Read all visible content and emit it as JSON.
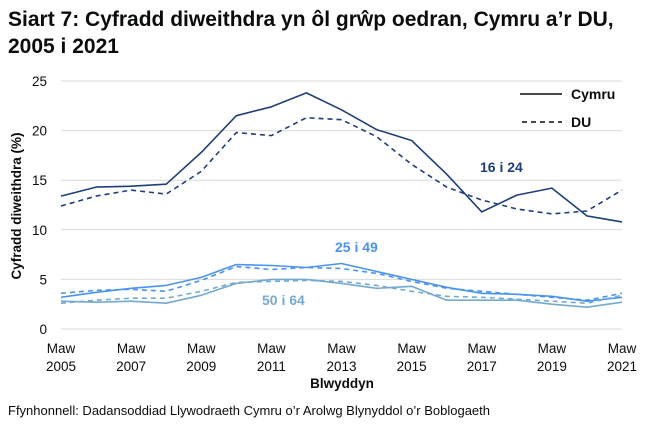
{
  "title": "Siart 7: Cyfradd diweithdra yn ôl grŵp oedran, Cymru a’r DU, 2005 i 2021",
  "source": "Ffynhonnell: Dadansoddiad Llywodraeth Cymru o’r Arolwg Blynyddol o’r Boblogaeth",
  "chart_data": {
    "type": "line",
    "title": "Siart 7: Cyfradd diweithdra yn ôl grŵp oedran, Cymru a’r DU, 2005 i 2021",
    "xlabel": "Blwyddyn",
    "ylabel": "Cyfradd diweithdra (%)",
    "ylim": [
      0,
      25
    ],
    "yticks": [
      "0",
      "5",
      "10",
      "15",
      "20",
      "25"
    ],
    "grid": true,
    "legend_position": "top-right",
    "legend": [
      {
        "name": "Cymru",
        "style": "solid"
      },
      {
        "name": "DU",
        "style": "dashed"
      }
    ],
    "x": [
      2005,
      2006,
      2007,
      2008,
      2009,
      2010,
      2011,
      2012,
      2013,
      2014,
      2015,
      2016,
      2017,
      2018,
      2019,
      2020,
      2021
    ],
    "xticks": [
      {
        "year": 2005,
        "line1": "Maw",
        "line2": "2005"
      },
      {
        "year": 2007,
        "line1": "Maw",
        "line2": "2007"
      },
      {
        "year": 2009,
        "line1": "Maw",
        "line2": "2009"
      },
      {
        "year": 2011,
        "line1": "Maw",
        "line2": "2011"
      },
      {
        "year": 2013,
        "line1": "Maw",
        "line2": "2013"
      },
      {
        "year": 2015,
        "line1": "Maw",
        "line2": "2015"
      },
      {
        "year": 2017,
        "line1": "Maw",
        "line2": "2017"
      },
      {
        "year": 2019,
        "line1": "Maw",
        "line2": "2019"
      },
      {
        "year": 2021,
        "line1": "Maw",
        "line2": "2021"
      }
    ],
    "group_labels": [
      {
        "text": "16 i 24",
        "color": "#1f3f7a"
      },
      {
        "text": "25 i 49",
        "color": "#4a94f0"
      },
      {
        "text": "50 i 64",
        "color": "#74a9d2"
      }
    ],
    "series": [
      {
        "group": "16 i 24",
        "area": "Cymru",
        "style": "solid",
        "color": "#1f3f7a",
        "values": [
          13.4,
          14.3,
          14.4,
          14.6,
          17.8,
          21.5,
          22.4,
          23.8,
          22.1,
          20.1,
          19.0,
          15.6,
          11.8,
          13.5,
          14.2,
          11.4,
          10.8
        ]
      },
      {
        "group": "16 i 24",
        "area": "DU",
        "style": "dashed",
        "color": "#1f3f7a",
        "values": [
          12.4,
          13.4,
          14.0,
          13.6,
          15.9,
          19.8,
          19.5,
          21.3,
          21.1,
          19.4,
          16.6,
          14.3,
          13.0,
          12.1,
          11.6,
          11.9,
          14.0
        ]
      },
      {
        "group": "25 i 49",
        "area": "Cymru",
        "style": "solid",
        "color": "#4a94f0",
        "values": [
          3.2,
          3.7,
          4.1,
          4.4,
          5.2,
          6.5,
          6.4,
          6.2,
          6.6,
          5.8,
          5.0,
          4.2,
          3.6,
          3.5,
          3.3,
          2.8,
          3.2
        ]
      },
      {
        "group": "25 i 49",
        "area": "DU",
        "style": "dashed",
        "color": "#4a94f0",
        "values": [
          3.6,
          3.9,
          4.0,
          3.8,
          4.9,
          6.3,
          6.0,
          6.2,
          6.1,
          5.6,
          4.8,
          4.1,
          3.8,
          3.5,
          3.2,
          2.9,
          3.6
        ]
      },
      {
        "group": "50 i 64",
        "area": "Cymru",
        "style": "solid",
        "color": "#74a9d2",
        "values": [
          2.8,
          2.7,
          2.8,
          2.6,
          3.4,
          4.6,
          5.0,
          5.0,
          4.6,
          4.1,
          4.3,
          2.9,
          2.9,
          2.9,
          2.5,
          2.2,
          2.7
        ]
      },
      {
        "group": "50 i 64",
        "area": "DU",
        "style": "dashed",
        "color": "#74a9d2",
        "values": [
          2.6,
          2.9,
          3.1,
          3.1,
          3.8,
          4.7,
          4.8,
          4.9,
          4.8,
          4.4,
          3.8,
          3.3,
          3.2,
          3.0,
          2.8,
          2.6,
          3.4
        ]
      }
    ]
  }
}
